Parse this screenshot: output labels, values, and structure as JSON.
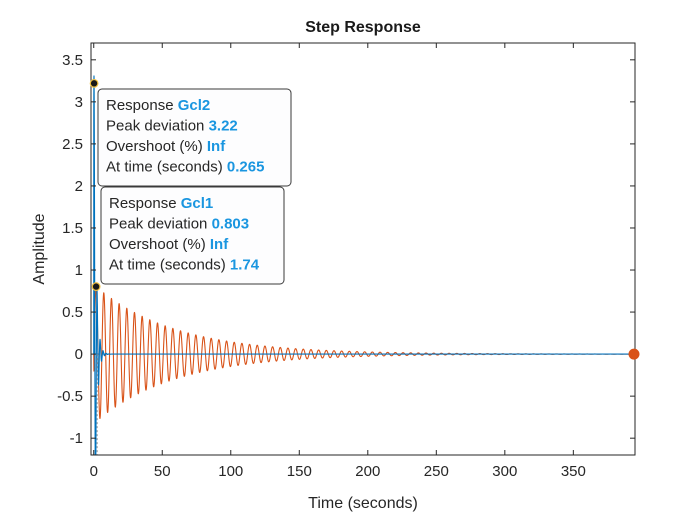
{
  "chart_data": {
    "type": "line",
    "title": "Step Response",
    "xlabel": "Time (seconds)",
    "ylabel": "Amplitude",
    "xlim": [
      -2,
      395
    ],
    "ylim": [
      -1.2,
      3.7
    ],
    "xticks": [
      0,
      50,
      100,
      150,
      200,
      250,
      300,
      350
    ],
    "xtick_labels": [
      "0",
      "50",
      "100",
      "150",
      "200",
      "250",
      "300",
      "350"
    ],
    "yticks": [
      -1,
      -0.5,
      0,
      0.5,
      1,
      1.5,
      2,
      2.5,
      3,
      3.5
    ],
    "ytick_labels": [
      "-1",
      "-0.5",
      "0",
      "0.5",
      "1",
      "1.5",
      "2",
      "2.5",
      "3",
      "3.5"
    ],
    "grid": false,
    "series": [
      {
        "name": "Gcl1",
        "color": "#d95319",
        "model": "damped-oscillation",
        "amplitude": 0.803,
        "peak_time": 1.74,
        "period": 5.6,
        "decay_time_constant": 58,
        "end_time": 395
      },
      {
        "name": "Gcl2",
        "color": "#0072bd",
        "model": "damped-oscillation",
        "amplitude": 3.22,
        "peak_time": 0.265,
        "period": 2.2,
        "decay_time_constant": 1.5,
        "end_time": 395
      }
    ],
    "datatips": [
      {
        "response_label": "Response",
        "response": "Gcl2",
        "peak_label": "Peak deviation",
        "peak": "3.22",
        "overshoot_label": "Overshoot (%)",
        "overshoot": "Inf",
        "time_label": "At time (seconds)",
        "time": "0.265",
        "x": 0.265,
        "y": 3.22
      },
      {
        "response_label": "Response",
        "response": "Gcl1",
        "peak_label": "Peak deviation",
        "peak": "0.803",
        "overshoot_label": "Overshoot (%)",
        "overshoot": "Inf",
        "time_label": "At time (seconds)",
        "time": "1.74",
        "x": 1.74,
        "y": 0.803
      }
    ],
    "end_marker": {
      "x": 395,
      "y": 0,
      "color": "#d95319"
    }
  }
}
